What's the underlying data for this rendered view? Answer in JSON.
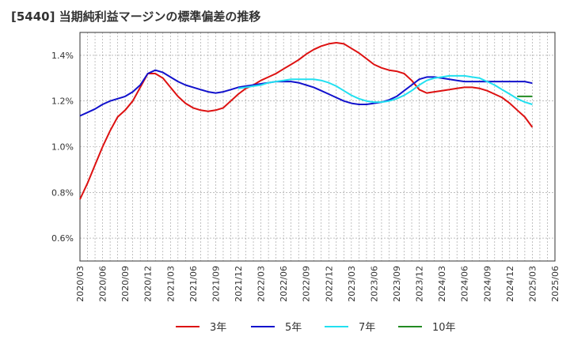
{
  "title": "[5440]  当期純利益マージンの標準偏差の推移",
  "chart_data": {
    "type": "line",
    "title": "[5440]  当期純利益マージンの標準偏差の推移",
    "xlabel": "",
    "ylabel": "",
    "ylim": [
      0.5,
      1.5
    ],
    "yticks": [
      0.6,
      0.8,
      1.0,
      1.2,
      1.4
    ],
    "ytick_labels": [
      "0.6%",
      "0.8%",
      "1.0%",
      "1.2%",
      "1.4%"
    ],
    "xlim": [
      "2020-03",
      "2025-06"
    ],
    "xtick_labels": [
      "2020/03",
      "2020/06",
      "2020/09",
      "2020/12",
      "2021/03",
      "2021/06",
      "2021/09",
      "2021/12",
      "2022/03",
      "2022/06",
      "2022/09",
      "2022/12",
      "2023/03",
      "2023/06",
      "2023/09",
      "2023/12",
      "2024/03",
      "2024/06",
      "2024/09",
      "2024/12",
      "2025/03",
      "2025/06"
    ],
    "grid": true,
    "legend_position": "bottom",
    "series": [
      {
        "name": "3年",
        "color": "#dd1111",
        "points": [
          [
            "2020-03",
            0.77
          ],
          [
            "2020-04",
            0.84
          ],
          [
            "2020-05",
            0.92
          ],
          [
            "2020-06",
            1.0
          ],
          [
            "2020-07",
            1.07
          ],
          [
            "2020-08",
            1.13
          ],
          [
            "2020-09",
            1.16
          ],
          [
            "2020-10",
            1.2
          ],
          [
            "2020-11",
            1.26
          ],
          [
            "2020-12",
            1.32
          ],
          [
            "2021-01",
            1.32
          ],
          [
            "2021-02",
            1.3
          ],
          [
            "2021-03",
            1.26
          ],
          [
            "2021-04",
            1.22
          ],
          [
            "2021-05",
            1.19
          ],
          [
            "2021-06",
            1.17
          ],
          [
            "2021-07",
            1.16
          ],
          [
            "2021-08",
            1.155
          ],
          [
            "2021-09",
            1.16
          ],
          [
            "2021-10",
            1.17
          ],
          [
            "2021-11",
            1.2
          ],
          [
            "2021-12",
            1.23
          ],
          [
            "2022-01",
            1.255
          ],
          [
            "2022-02",
            1.27
          ],
          [
            "2022-03",
            1.29
          ],
          [
            "2022-04",
            1.305
          ],
          [
            "2022-05",
            1.32
          ],
          [
            "2022-06",
            1.34
          ],
          [
            "2022-07",
            1.36
          ],
          [
            "2022-08",
            1.38
          ],
          [
            "2022-09",
            1.405
          ],
          [
            "2022-10",
            1.425
          ],
          [
            "2022-11",
            1.44
          ],
          [
            "2022-12",
            1.45
          ],
          [
            "2023-01",
            1.455
          ],
          [
            "2023-02",
            1.45
          ],
          [
            "2023-03",
            1.43
          ],
          [
            "2023-04",
            1.41
          ],
          [
            "2023-05",
            1.385
          ],
          [
            "2023-06",
            1.36
          ],
          [
            "2023-07",
            1.345
          ],
          [
            "2023-08",
            1.335
          ],
          [
            "2023-09",
            1.33
          ],
          [
            "2023-10",
            1.32
          ],
          [
            "2023-11",
            1.29
          ],
          [
            "2023-12",
            1.25
          ],
          [
            "2024-01",
            1.235
          ],
          [
            "2024-02",
            1.24
          ],
          [
            "2024-03",
            1.245
          ],
          [
            "2024-04",
            1.25
          ],
          [
            "2024-05",
            1.255
          ],
          [
            "2024-06",
            1.26
          ],
          [
            "2024-07",
            1.26
          ],
          [
            "2024-08",
            1.255
          ],
          [
            "2024-09",
            1.245
          ],
          [
            "2024-10",
            1.23
          ],
          [
            "2024-11",
            1.215
          ],
          [
            "2024-12",
            1.19
          ],
          [
            "2025-01",
            1.16
          ],
          [
            "2025-02",
            1.13
          ],
          [
            "2025-03",
            1.085
          ]
        ]
      },
      {
        "name": "5年",
        "color": "#1111cc",
        "points": [
          [
            "2020-03",
            1.135
          ],
          [
            "2020-04",
            1.15
          ],
          [
            "2020-05",
            1.165
          ],
          [
            "2020-06",
            1.185
          ],
          [
            "2020-07",
            1.2
          ],
          [
            "2020-08",
            1.21
          ],
          [
            "2020-09",
            1.22
          ],
          [
            "2020-10",
            1.24
          ],
          [
            "2020-11",
            1.27
          ],
          [
            "2020-12",
            1.32
          ],
          [
            "2021-01",
            1.335
          ],
          [
            "2021-02",
            1.325
          ],
          [
            "2021-03",
            1.305
          ],
          [
            "2021-04",
            1.285
          ],
          [
            "2021-05",
            1.27
          ],
          [
            "2021-06",
            1.26
          ],
          [
            "2021-07",
            1.25
          ],
          [
            "2021-08",
            1.24
          ],
          [
            "2021-09",
            1.235
          ],
          [
            "2021-10",
            1.24
          ],
          [
            "2021-11",
            1.25
          ],
          [
            "2021-12",
            1.26
          ],
          [
            "2022-01",
            1.265
          ],
          [
            "2022-02",
            1.27
          ],
          [
            "2022-03",
            1.275
          ],
          [
            "2022-04",
            1.28
          ],
          [
            "2022-05",
            1.285
          ],
          [
            "2022-06",
            1.285
          ],
          [
            "2022-07",
            1.285
          ],
          [
            "2022-08",
            1.28
          ],
          [
            "2022-09",
            1.27
          ],
          [
            "2022-10",
            1.26
          ],
          [
            "2022-11",
            1.245
          ],
          [
            "2022-12",
            1.23
          ],
          [
            "2023-01",
            1.215
          ],
          [
            "2023-02",
            1.2
          ],
          [
            "2023-03",
            1.19
          ],
          [
            "2023-04",
            1.185
          ],
          [
            "2023-05",
            1.185
          ],
          [
            "2023-06",
            1.19
          ],
          [
            "2023-07",
            1.195
          ],
          [
            "2023-08",
            1.205
          ],
          [
            "2023-09",
            1.22
          ],
          [
            "2023-10",
            1.245
          ],
          [
            "2023-11",
            1.27
          ],
          [
            "2023-12",
            1.295
          ],
          [
            "2024-01",
            1.305
          ],
          [
            "2024-02",
            1.305
          ],
          [
            "2024-03",
            1.3
          ],
          [
            "2024-04",
            1.295
          ],
          [
            "2024-05",
            1.29
          ],
          [
            "2024-06",
            1.285
          ],
          [
            "2024-07",
            1.285
          ],
          [
            "2024-08",
            1.285
          ],
          [
            "2024-09",
            1.285
          ],
          [
            "2024-10",
            1.285
          ],
          [
            "2024-11",
            1.285
          ],
          [
            "2024-12",
            1.285
          ],
          [
            "2025-01",
            1.285
          ],
          [
            "2025-02",
            1.285
          ],
          [
            "2025-03",
            1.278
          ]
        ]
      },
      {
        "name": "7年",
        "color": "#22e0f0",
        "points": [
          [
            "2021-12",
            1.255
          ],
          [
            "2022-01",
            1.26
          ],
          [
            "2022-02",
            1.265
          ],
          [
            "2022-03",
            1.27
          ],
          [
            "2022-04",
            1.28
          ],
          [
            "2022-05",
            1.285
          ],
          [
            "2022-06",
            1.29
          ],
          [
            "2022-07",
            1.295
          ],
          [
            "2022-08",
            1.295
          ],
          [
            "2022-09",
            1.295
          ],
          [
            "2022-10",
            1.295
          ],
          [
            "2022-11",
            1.29
          ],
          [
            "2022-12",
            1.28
          ],
          [
            "2023-01",
            1.265
          ],
          [
            "2023-02",
            1.245
          ],
          [
            "2023-03",
            1.225
          ],
          [
            "2023-04",
            1.21
          ],
          [
            "2023-05",
            1.2
          ],
          [
            "2023-06",
            1.195
          ],
          [
            "2023-07",
            1.195
          ],
          [
            "2023-08",
            1.2
          ],
          [
            "2023-09",
            1.21
          ],
          [
            "2023-10",
            1.225
          ],
          [
            "2023-11",
            1.245
          ],
          [
            "2023-12",
            1.27
          ],
          [
            "2024-01",
            1.29
          ],
          [
            "2024-02",
            1.3
          ],
          [
            "2024-03",
            1.305
          ],
          [
            "2024-04",
            1.31
          ],
          [
            "2024-05",
            1.31
          ],
          [
            "2024-06",
            1.31
          ],
          [
            "2024-07",
            1.305
          ],
          [
            "2024-08",
            1.3
          ],
          [
            "2024-09",
            1.285
          ],
          [
            "2024-10",
            1.27
          ],
          [
            "2024-11",
            1.25
          ],
          [
            "2024-12",
            1.23
          ],
          [
            "2025-01",
            1.21
          ],
          [
            "2025-02",
            1.195
          ],
          [
            "2025-03",
            1.185
          ]
        ]
      },
      {
        "name": "10年",
        "color": "#228b22",
        "points": [
          [
            "2025-01",
            1.22
          ],
          [
            "2025-02",
            1.22
          ],
          [
            "2025-03",
            1.22
          ]
        ]
      }
    ]
  }
}
